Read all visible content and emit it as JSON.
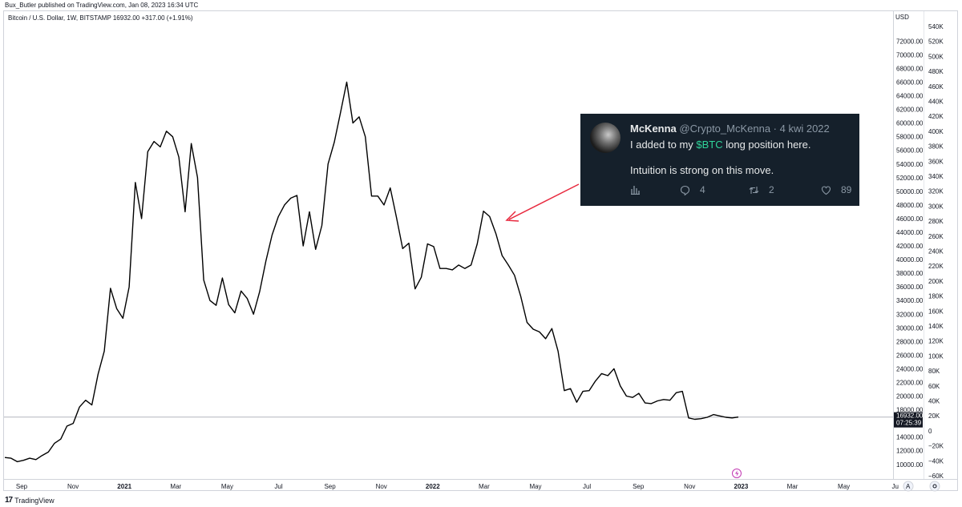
{
  "header": {
    "publish_line": "Bux_Butler published on TradingView.com, Jan 08, 2023 16:34 UTC",
    "symbol_line": "Bitcoin / U.S. Dollar, 1W, BITSTAMP  16932.00  +317.00 (+1.91%)"
  },
  "axis": {
    "currency_label": "USD",
    "last_price": "16932.00",
    "countdown": "07:25:39",
    "footer_btn_a": "A"
  },
  "colors": {
    "line": "#000000",
    "arrow": "#e8293e",
    "tweet_bg": "#15202b",
    "cashtag": "#2fd59a",
    "price_tag_bg": "#131722"
  },
  "tweet": {
    "name": "McKenna",
    "handle": "@Crypto_McKenna · 4 kwi 2022",
    "text_before": "I added to my ",
    "cashtag": "$BTC",
    "text_after": " long position here.",
    "text_line2": "Intuition is strong on this move.",
    "replies": "4",
    "retweets": "2",
    "likes": "89",
    "icons": [
      "analytics-icon",
      "reply-icon",
      "retweet-icon",
      "like-icon"
    ]
  },
  "footer": {
    "brand": "TradingView"
  },
  "chart_data": {
    "type": "line",
    "series": [
      {
        "values": [
          11000,
          10900,
          10400,
          10600,
          10900,
          10700,
          11300,
          11800,
          13100,
          13700,
          15600,
          16000,
          18400,
          19400,
          18700,
          23200,
          26600,
          35800,
          32800,
          31400,
          36000,
          51300,
          46000,
          55800,
          57300,
          56500,
          58800,
          58000,
          55000,
          47000,
          57000,
          52000,
          37000,
          34000,
          33300,
          37300,
          33400,
          32200,
          35400,
          34300,
          32000,
          35300,
          39800,
          43600,
          46300,
          48000,
          49000,
          49400,
          42000,
          47000,
          41500,
          45000,
          54000,
          57200,
          61500,
          66000,
          60000,
          60900,
          58000,
          49300,
          49300,
          48000,
          50500,
          46200,
          41600,
          42400,
          35700,
          37400,
          42300,
          41900,
          38700,
          38700,
          38500,
          39200,
          38700,
          39200,
          42300,
          47100,
          46300,
          43800,
          40600,
          39200,
          37700,
          34600,
          30800,
          29800,
          29400,
          28400,
          29900,
          26600,
          20800,
          21100,
          19100,
          20700,
          20800,
          22200,
          23300,
          23000,
          24000,
          21500,
          20000,
          19800,
          20400,
          19000,
          18900,
          19300,
          19500,
          19400,
          20500,
          20700,
          16800,
          16600,
          16700,
          16900,
          17300,
          17100,
          16900,
          16800,
          16932
        ]
      }
    ],
    "x_tick_labels": [
      "Sep",
      "Nov",
      "2021",
      "Mar",
      "May",
      "Jul",
      "Sep",
      "Nov",
      "2022",
      "Mar",
      "May",
      "Jul",
      "Sep",
      "Nov",
      "2023",
      "Mar",
      "May",
      "Ju"
    ],
    "y_tick_labels": [
      "72000.00",
      "70000.00",
      "68000.00",
      "66000.00",
      "64000.00",
      "62000.00",
      "60000.00",
      "58000.00",
      "56000.00",
      "54000.00",
      "52000.00",
      "50000.00",
      "48000.00",
      "46000.00",
      "44000.00",
      "42000.00",
      "40000.00",
      "38000.00",
      "36000.00",
      "34000.00",
      "32000.00",
      "30000.00",
      "28000.00",
      "26000.00",
      "24000.00",
      "22000.00",
      "20000.00",
      "18000.00",
      "14000.00",
      "12000.00",
      "10000.00"
    ],
    "y2_tick_labels": [
      "540K",
      "520K",
      "500K",
      "480K",
      "460K",
      "440K",
      "420K",
      "400K",
      "380K",
      "360K",
      "340K",
      "320K",
      "300K",
      "280K",
      "260K",
      "240K",
      "220K",
      "200K",
      "180K",
      "160K",
      "140K",
      "120K",
      "100K",
      "80K",
      "60K",
      "40K",
      "20K",
      "0",
      "−20K",
      "−40K",
      "−60K"
    ],
    "ylim": [
      8800,
      73800
    ],
    "last_value": 16932
  }
}
